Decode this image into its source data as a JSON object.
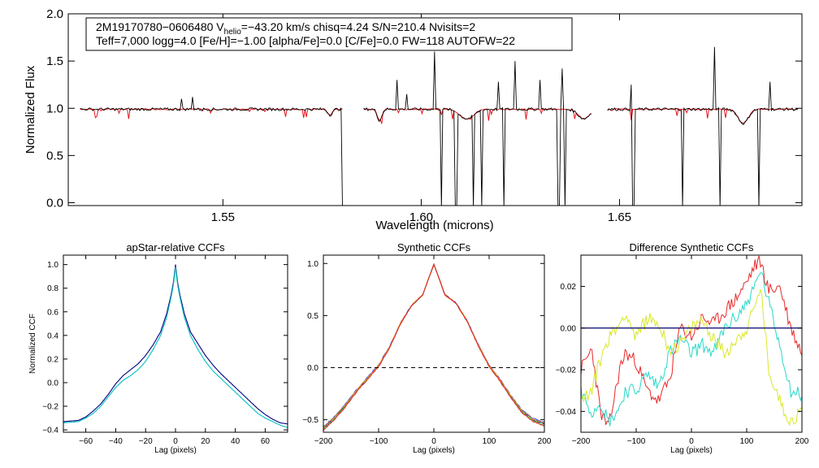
{
  "colors": {
    "observed": "#000000",
    "model": "#e8141c",
    "ccf_series": [
      "#000080",
      "#00c0c0",
      "#2040ff",
      "#40d040",
      "#d8e020",
      "#e82020",
      "#20d8c8"
    ],
    "zero_line": "#00006e"
  },
  "chart_data": [
    {
      "type": "line",
      "name": "spectrum",
      "title": "",
      "xlabel": "Wavelength (microns)",
      "ylabel": "Normalized Flux",
      "xlim": [
        1.511,
        1.696
      ],
      "ylim": [
        -0.03,
        2.0
      ],
      "x_ticks": [
        1.55,
        1.6,
        1.65
      ],
      "x_tick_labels": [
        "1.55",
        "1.60",
        "1.65"
      ],
      "y_ticks": [
        0.0,
        0.5,
        1.0,
        1.5,
        2.0
      ],
      "y_tick_labels": [
        "0.0",
        "0.5",
        "1.0",
        "1.5",
        "2.0"
      ],
      "chips": [
        [
          1.514,
          1.5805
        ],
        [
          1.5855,
          1.643
        ],
        [
          1.647,
          1.695
        ]
      ],
      "continuum_level": 0.99,
      "absorption_dips": [
        {
          "center": 1.5895,
          "depth": 0.12,
          "width": 0.0008
        },
        {
          "center": 1.6115,
          "depth": 0.1,
          "width": 0.0025
        },
        {
          "center": 1.641,
          "depth": 0.1,
          "width": 0.002
        },
        {
          "center": 1.6812,
          "depth": 0.15,
          "width": 0.0018
        },
        {
          "center": 1.577,
          "depth": 0.06,
          "width": 0.0008
        }
      ],
      "emission_spikes": [
        1.5395,
        1.5425,
        1.594,
        1.5963,
        1.6035,
        1.6195,
        1.6236,
        1.63,
        1.6355,
        1.653,
        1.674,
        1.688
      ],
      "emission_heights": [
        1.1,
        1.12,
        1.3,
        1.15,
        1.6,
        1.28,
        1.5,
        1.3,
        1.42,
        1.25,
        1.65,
        1.28
      ],
      "bad_pixels": [
        1.5803,
        1.605,
        1.6085,
        1.609,
        1.613,
        1.6152,
        1.6208,
        1.6345,
        1.635,
        1.6364,
        1.6532,
        1.6536,
        1.6658,
        1.6752,
        1.685
      ]
    },
    {
      "type": "line",
      "name": "apstar_ccf",
      "title": "apStar-relative CCFs",
      "xlabel": "Lag (pixels)",
      "ylabel": "Normalized CCF",
      "xlim": [
        -75,
        75
      ],
      "ylim": [
        -0.42,
        1.08
      ],
      "x_ticks": [
        -60,
        -40,
        -20,
        0,
        20,
        40,
        60
      ],
      "x_tick_labels": [
        "−60",
        "−40",
        "−20",
        "0",
        "20",
        "40",
        "60"
      ],
      "y_ticks": [
        -0.4,
        -0.2,
        0.0,
        0.2,
        0.4,
        0.6,
        0.8,
        1.0
      ],
      "y_tick_labels": [
        "−0.4",
        "−0.2",
        "0.0",
        "0.2",
        "0.4",
        "0.6",
        "0.8",
        "1.0"
      ],
      "series": [
        {
          "name": "visit 1",
          "x": [
            -75,
            -65,
            -60,
            -55,
            -50,
            -45,
            -40,
            -35,
            -30,
            -25,
            -20,
            -15,
            -10,
            -6,
            -3,
            -1.5,
            0,
            1.5,
            3,
            6,
            10,
            15,
            20,
            25,
            30,
            35,
            40,
            45,
            50,
            55,
            60,
            65,
            70,
            75
          ],
          "values": [
            -0.34,
            -0.33,
            -0.3,
            -0.26,
            -0.2,
            -0.12,
            -0.04,
            0.02,
            0.06,
            0.11,
            0.18,
            0.28,
            0.4,
            0.55,
            0.72,
            0.82,
            0.98,
            0.82,
            0.72,
            0.55,
            0.4,
            0.28,
            0.18,
            0.1,
            0.04,
            -0.02,
            -0.08,
            -0.14,
            -0.2,
            -0.26,
            -0.3,
            -0.33,
            -0.36,
            -0.38
          ]
        },
        {
          "name": "visit 2",
          "x": [
            -75,
            -65,
            -60,
            -55,
            -50,
            -45,
            -40,
            -35,
            -30,
            -25,
            -20,
            -15,
            -10,
            -6,
            -3,
            -1.5,
            0,
            1.5,
            3,
            6,
            10,
            15,
            20,
            25,
            30,
            35,
            40,
            45,
            50,
            55,
            60,
            65,
            70,
            75
          ],
          "values": [
            -0.33,
            -0.32,
            -0.29,
            -0.24,
            -0.18,
            -0.1,
            -0.01,
            0.06,
            0.11,
            0.16,
            0.23,
            0.32,
            0.43,
            0.58,
            0.74,
            0.84,
            1.0,
            0.84,
            0.74,
            0.58,
            0.43,
            0.33,
            0.23,
            0.15,
            0.08,
            0.02,
            -0.04,
            -0.1,
            -0.16,
            -0.22,
            -0.27,
            -0.31,
            -0.34,
            -0.35
          ]
        }
      ]
    },
    {
      "type": "line",
      "name": "synthetic_ccf",
      "title": "Synthetic CCFs",
      "xlabel": "Lag (pixels)",
      "ylabel": "",
      "xlim": [
        -200,
        200
      ],
      "ylim": [
        -0.62,
        1.08
      ],
      "x_ticks": [
        -200,
        -100,
        0,
        100,
        200
      ],
      "x_tick_labels": [
        "−200",
        "−100",
        "0",
        "100",
        "200"
      ],
      "y_ticks": [
        -0.5,
        0.0,
        0.5,
        1.0
      ],
      "y_tick_labels": [
        "−0.5",
        "0.0",
        "0.5",
        "1.0"
      ],
      "reference_line": 0.0,
      "series": [
        {
          "name": "navy",
          "offset": 0.0
        },
        {
          "name": "blue",
          "offset": 0.012
        },
        {
          "name": "green",
          "offset": -0.012
        },
        {
          "name": "orange",
          "offset": 0.006
        },
        {
          "name": "red",
          "offset": -0.02
        }
      ],
      "base_curve": {
        "x": [
          -200,
          -180,
          -160,
          -140,
          -120,
          -100,
          -80,
          -60,
          -40,
          -20,
          -10,
          0,
          10,
          20,
          40,
          60,
          80,
          100,
          120,
          140,
          160,
          180,
          200
        ],
        "values": [
          -0.58,
          -0.48,
          -0.36,
          -0.22,
          -0.1,
          0.02,
          0.2,
          0.43,
          0.6,
          0.7,
          0.85,
          0.99,
          0.85,
          0.7,
          0.62,
          0.45,
          0.22,
          0.02,
          -0.12,
          -0.28,
          -0.42,
          -0.5,
          -0.54
        ]
      }
    },
    {
      "type": "line",
      "name": "difference_ccf",
      "title": "Difference Synthetic CCFs",
      "xlabel": "Lag (pixels)",
      "ylabel": "",
      "xlim": [
        -200,
        200
      ],
      "ylim": [
        -0.05,
        0.035
      ],
      "x_ticks": [
        -200,
        -100,
        0,
        100,
        200
      ],
      "x_tick_labels": [
        "−200",
        "−100",
        "0",
        "100",
        "200"
      ],
      "y_ticks": [
        -0.04,
        -0.02,
        0.0,
        0.02
      ],
      "y_tick_labels": [
        "−0.04",
        "−0.02",
        "0.00",
        "0.02"
      ],
      "reference_line": 0.0,
      "series": [
        {
          "name": "red",
          "x": [
            -200,
            -180,
            -165,
            -150,
            -130,
            -120,
            -100,
            -80,
            -60,
            -40,
            -20,
            0,
            20,
            40,
            60,
            80,
            100,
            115,
            125,
            140,
            160,
            180,
            200
          ],
          "values": [
            -0.02,
            -0.01,
            -0.04,
            -0.048,
            -0.02,
            -0.012,
            -0.016,
            -0.03,
            -0.035,
            -0.025,
            0.0,
            -0.004,
            0.005,
            0.002,
            0.008,
            0.014,
            0.022,
            0.03,
            0.032,
            0.018,
            0.02,
            0.0,
            -0.012
          ]
        },
        {
          "name": "cyan",
          "x": [
            -200,
            -180,
            -165,
            -150,
            -130,
            -120,
            -100,
            -80,
            -60,
            -40,
            -20,
            0,
            20,
            40,
            60,
            80,
            100,
            115,
            125,
            140,
            160,
            180,
            200
          ],
          "values": [
            -0.03,
            -0.04,
            -0.035,
            -0.045,
            -0.038,
            -0.03,
            -0.03,
            -0.022,
            -0.028,
            -0.012,
            -0.005,
            -0.012,
            -0.008,
            -0.012,
            0.0,
            0.005,
            0.012,
            0.02,
            0.028,
            0.012,
            -0.008,
            -0.03,
            -0.032
          ]
        },
        {
          "name": "yellow",
          "x": [
            -200,
            -180,
            -165,
            -150,
            -130,
            -120,
            -100,
            -80,
            -60,
            -40,
            -20,
            0,
            20,
            40,
            60,
            80,
            100,
            115,
            125,
            140,
            160,
            180,
            200
          ],
          "values": [
            -0.035,
            -0.03,
            -0.015,
            -0.005,
            0.002,
            0.008,
            -0.005,
            0.005,
            0.002,
            -0.01,
            -0.008,
            0.0,
            0.004,
            -0.005,
            -0.012,
            -0.006,
            0.0,
            0.01,
            0.02,
            -0.02,
            -0.035,
            -0.045,
            -0.04
          ]
        }
      ]
    }
  ],
  "info": {
    "line1_pre": "2M19170780−0606480  V",
    "line1_sub": "helio",
    "line1_post": "=−43.20 km/s  chisq=4.24  S/N=210.4  Nvisits=2",
    "line2": "Teff=7,000 logg=4.0 [Fe/H]=−1.00 [alpha/Fe]=0.0 [C/Fe]=0.0 FW=118 AUTOFW=22"
  }
}
